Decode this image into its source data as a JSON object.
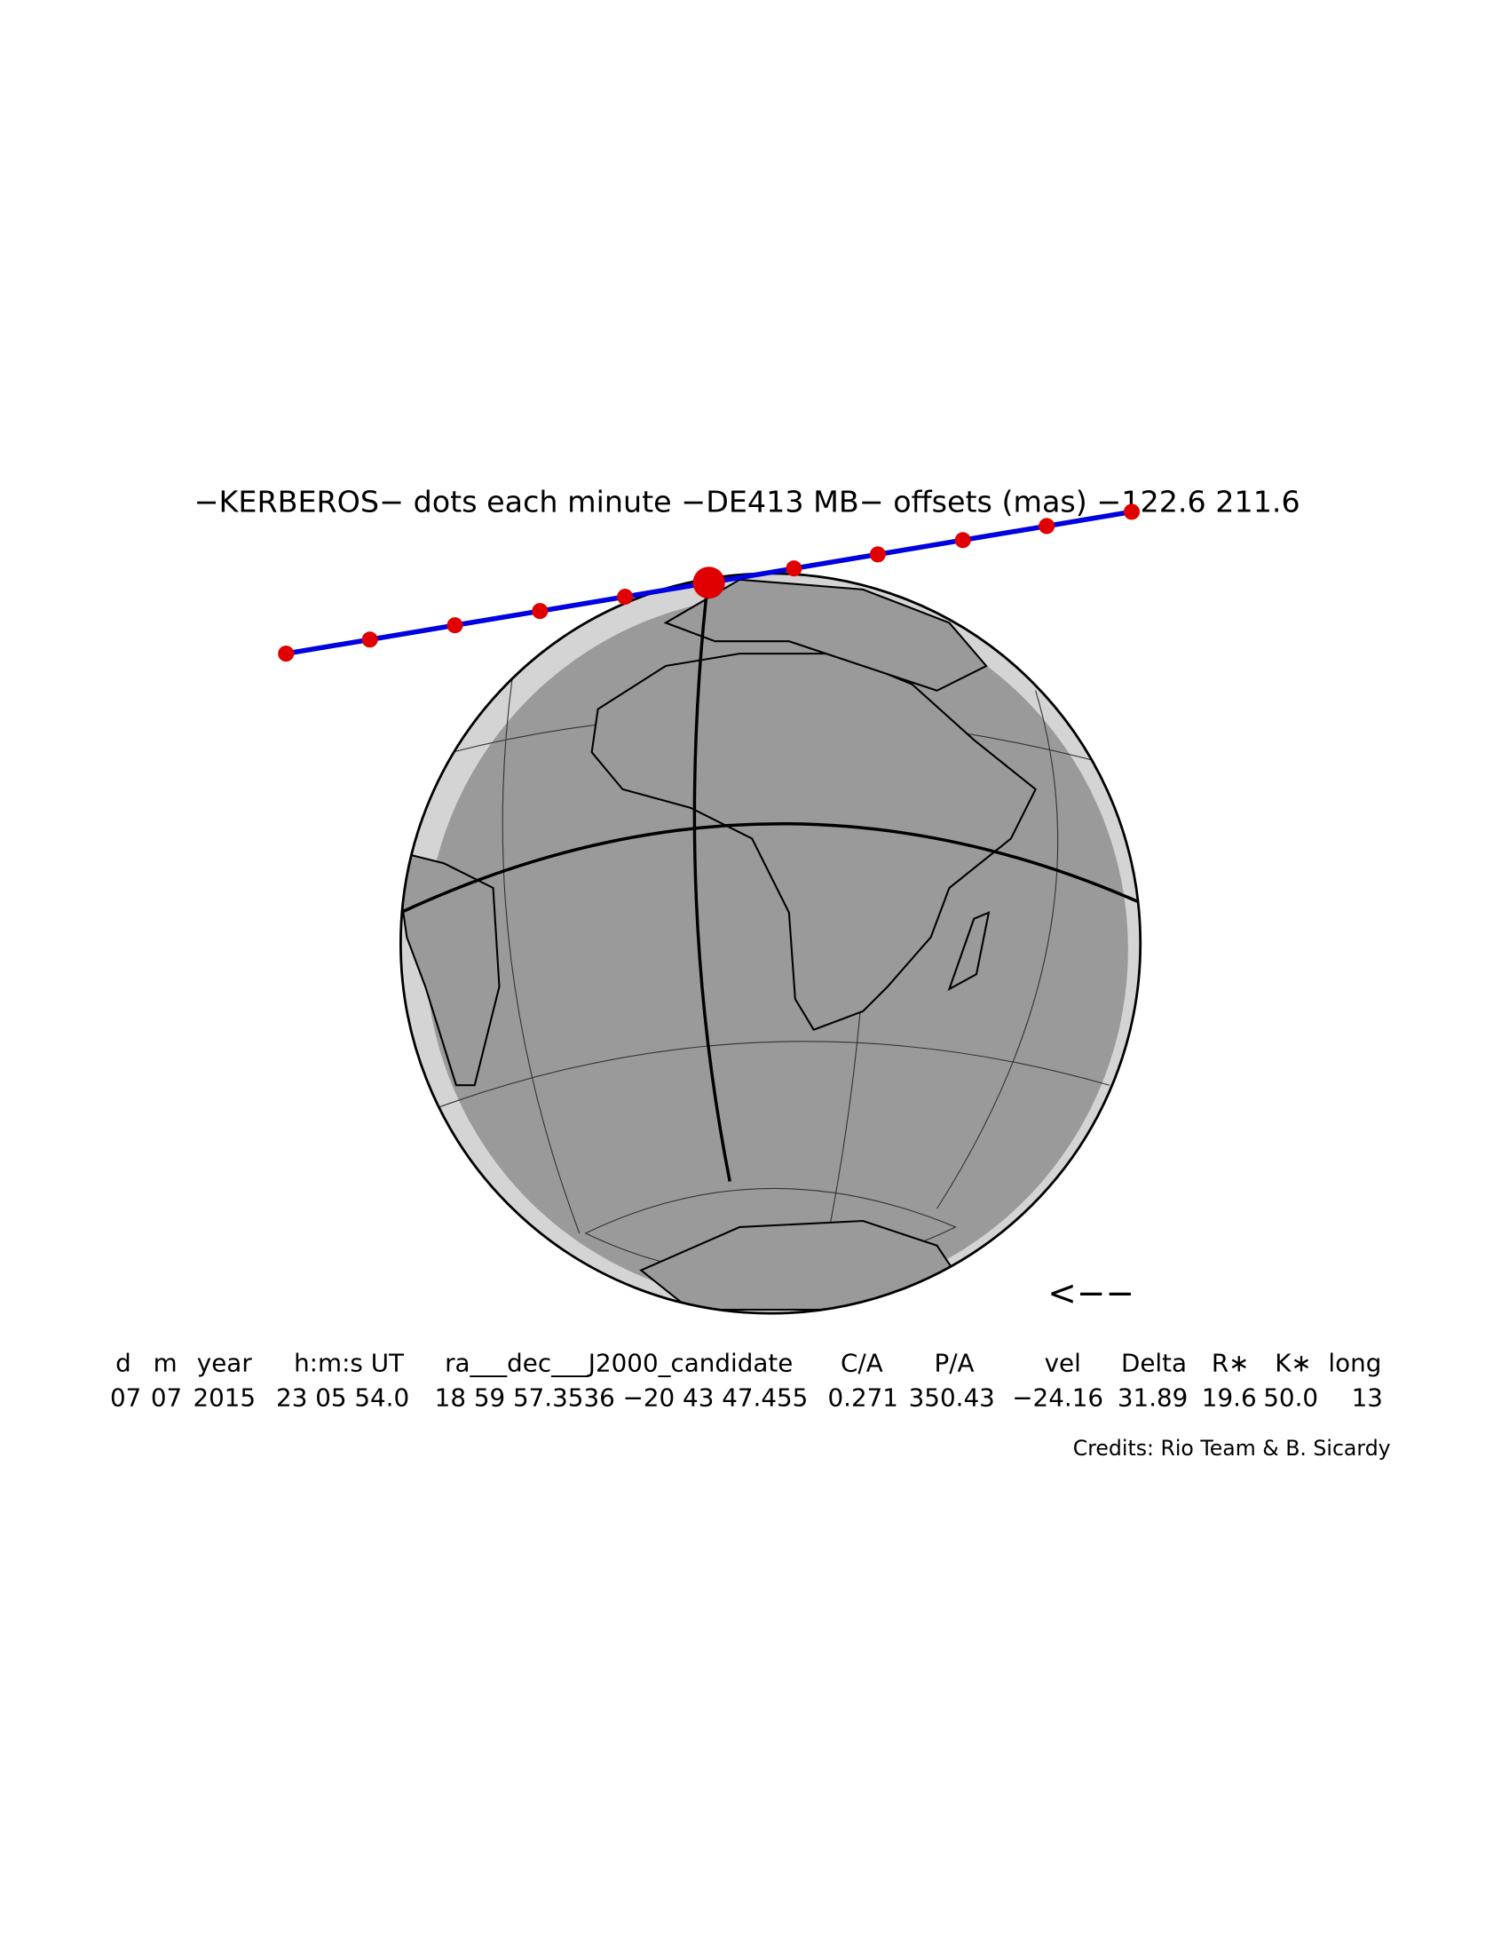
{
  "title": "−KERBEROS− dots each minute −DE413 MB− offsets (mas) −122.6   211.6",
  "arrow": "<−−",
  "table": {
    "header": [
      "d",
      "m",
      "year",
      "h:m:s UT",
      "ra___dec___J2000_candidate",
      "C/A",
      "P/A",
      "vel",
      "Delta",
      "R∗",
      "K∗",
      "long"
    ],
    "row": [
      "07",
      "07",
      "2015",
      "23 05 54.0",
      "18 59 57.3536 −20 43 47.455",
      "0.271",
      "350.43",
      "−24.16",
      "31.89",
      "19.6",
      "50.0",
      "13"
    ]
  },
  "credits": "Credits: Rio Team & B. Sicardy"
}
